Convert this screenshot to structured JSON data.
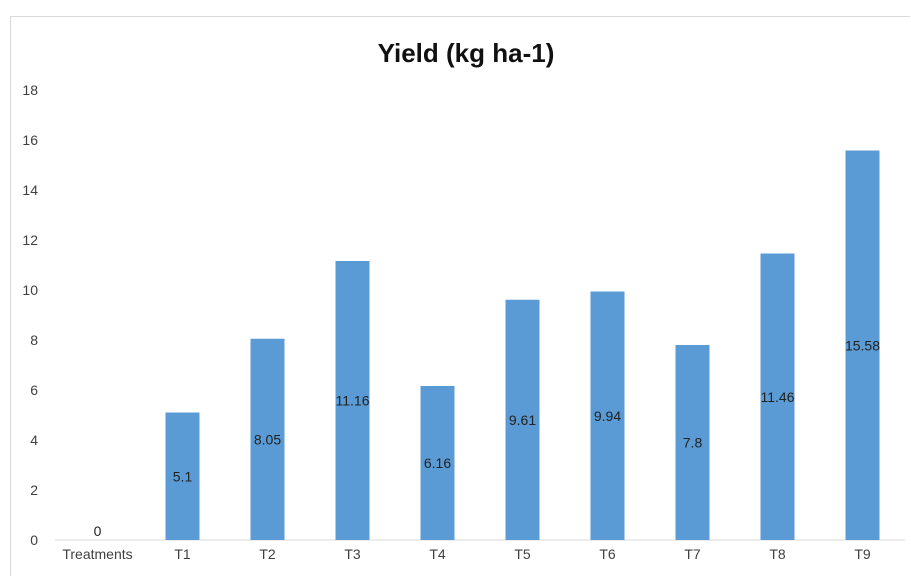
{
  "chart_data": {
    "type": "bar",
    "title": "Yield (kg ha-1)",
    "xlabel": "",
    "ylabel": "",
    "categories": [
      "Treatments",
      "T1",
      "T2",
      "T3",
      "T4",
      "T5",
      "T6",
      "T7",
      "T8",
      "T9"
    ],
    "values": [
      0,
      5.1,
      8.05,
      11.16,
      6.16,
      9.61,
      9.94,
      7.8,
      11.46,
      15.58
    ],
    "data_labels": [
      "0",
      "5.1",
      "8.05",
      "11.16",
      "6.16",
      "9.61",
      "9.94",
      "7.8",
      "11.46",
      "15.58"
    ],
    "ylim": [
      0,
      18
    ],
    "yticks": [
      0,
      2,
      4,
      6,
      8,
      10,
      12,
      14,
      16,
      18
    ],
    "grid": false,
    "legend": "none",
    "bar_color": "#5b9bd5"
  }
}
